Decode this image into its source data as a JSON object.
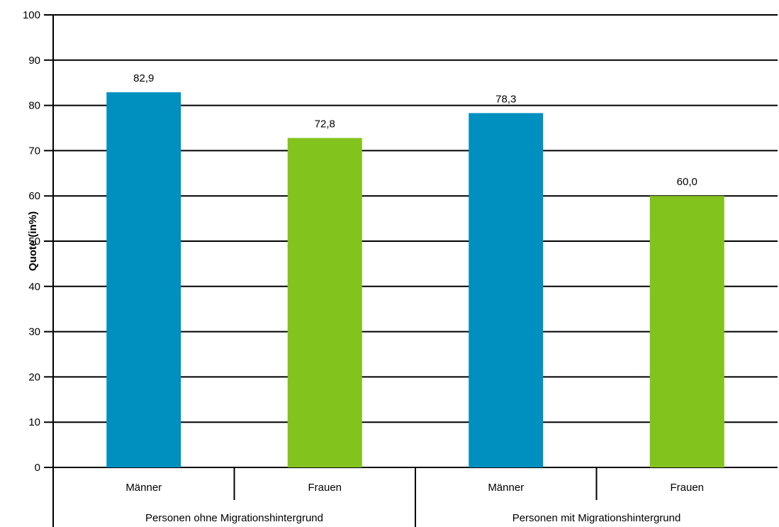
{
  "chart_data": {
    "type": "bar",
    "ylabel": "Quote (in%)",
    "ylim": [
      0,
      100
    ],
    "yticks": [
      0,
      10,
      20,
      30,
      40,
      50,
      60,
      70,
      80,
      90,
      100
    ],
    "grid": true,
    "groups": [
      {
        "label": "Personen ohne Migrationshintergrund",
        "bars": [
          {
            "category": "Männer",
            "value": 82.9,
            "value_label": "82,9",
            "color": "#0090c0"
          },
          {
            "category": "Frauen",
            "value": 72.8,
            "value_label": "72,8",
            "color": "#82c31e"
          }
        ]
      },
      {
        "label": "Personen mit Migrationshintergrund",
        "bars": [
          {
            "category": "Männer",
            "value": 78.3,
            "value_label": "78,3",
            "color": "#0090c0"
          },
          {
            "category": "Frauen",
            "value": 60.0,
            "value_label": "60,0",
            "color": "#82c31e"
          }
        ]
      }
    ]
  }
}
